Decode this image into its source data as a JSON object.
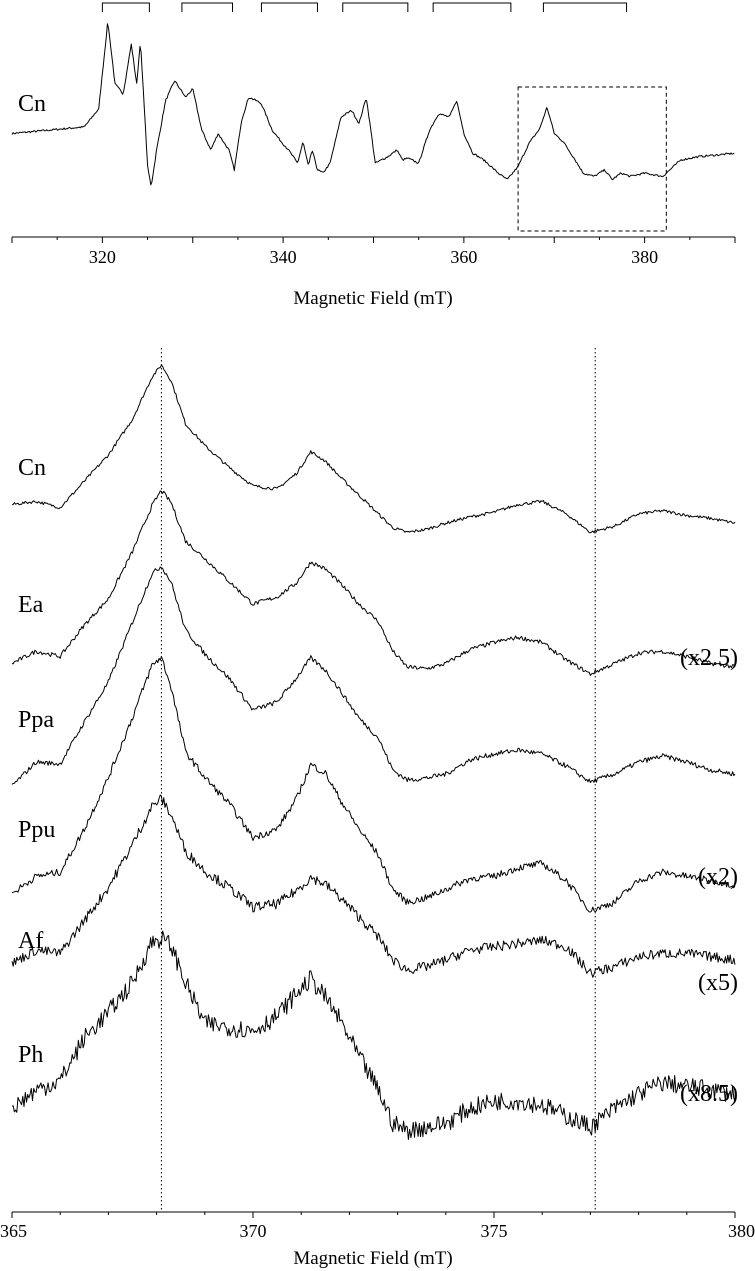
{
  "chart_data": [
    {
      "type": "line",
      "xlabel": "Magnetic Field (mT)",
      "xlim": [
        310,
        390
      ],
      "xticks": [
        320,
        340,
        360,
        380
      ],
      "series": [
        {
          "name": "Cn",
          "x": [
            310,
            318,
            319.6,
            320.6,
            321.4,
            322.3,
            323.2,
            323.8,
            324.2,
            324.6,
            325.0,
            325.4,
            326.0,
            327.0,
            328.0,
            329.2,
            330.0,
            331.0,
            332.0,
            332.8,
            333.4,
            334.0,
            334.6,
            335.4,
            336.2,
            337.0,
            337.6,
            338.8,
            339.8,
            340.6,
            341.6,
            342.2,
            342.8,
            343.2,
            343.8,
            344.4,
            345.2,
            346.4,
            347.6,
            348.4,
            349.2,
            350.2,
            351.6,
            352.6,
            353.2,
            353.8,
            355.0,
            356.2,
            357.2,
            358.4,
            359.2,
            360.0,
            361.0,
            362.2,
            363.0,
            363.8,
            364.8,
            366.0,
            367.2,
            368.4,
            369.2,
            370.0,
            371.0,
            372.2,
            373.2,
            374.4,
            375.6,
            376.4,
            377.4,
            378.4,
            380.0,
            382.0,
            384.0,
            386.0,
            388.0,
            390.0
          ],
          "y": [
            0.1,
            0.14,
            0.25,
            0.78,
            0.4,
            0.34,
            0.64,
            0.4,
            0.66,
            0.3,
            -0.1,
            -0.22,
            0.0,
            0.3,
            0.42,
            0.32,
            0.37,
            0.12,
            0.0,
            0.1,
            0.05,
            0.0,
            -0.12,
            0.18,
            0.32,
            0.3,
            0.28,
            0.12,
            0.05,
            0.0,
            -0.08,
            0.05,
            -0.1,
            0.0,
            -0.12,
            -0.14,
            -0.08,
            0.2,
            0.24,
            0.16,
            0.32,
            -0.08,
            -0.04,
            0.0,
            -0.06,
            -0.05,
            -0.08,
            0.12,
            0.22,
            0.2,
            0.3,
            0.1,
            -0.02,
            -0.06,
            -0.1,
            -0.14,
            -0.18,
            -0.1,
            0.04,
            0.13,
            0.26,
            0.1,
            0.05,
            -0.05,
            -0.14,
            -0.16,
            -0.12,
            -0.18,
            -0.14,
            -0.16,
            -0.14,
            -0.16,
            -0.06,
            -0.04,
            -0.03,
            -0.02
          ]
        }
      ],
      "brackets": [
        [
          320,
          325.2
        ],
        [
          328.8,
          334.4
        ],
        [
          337.6,
          343.8
        ],
        [
          346.6,
          353.8
        ],
        [
          356.6,
          365.2
        ],
        [
          368.8,
          378
        ]
      ],
      "highlight_box": [
        366.0,
        382.4
      ]
    },
    {
      "type": "line",
      "xlabel": "Magnetic Field (mT)",
      "xlim": [
        365,
        380
      ],
      "xticks": [
        365,
        370,
        375,
        380
      ],
      "reference_lines": [
        368.1,
        377.1
      ],
      "x": [
        365.0,
        365.5,
        366.0,
        366.5,
        367.0,
        367.5,
        367.9,
        368.1,
        368.3,
        368.6,
        369.0,
        369.5,
        370.0,
        370.5,
        370.9,
        371.2,
        371.5,
        371.8,
        372.2,
        372.6,
        372.9,
        373.2,
        373.6,
        374.0,
        374.5,
        375.0,
        375.5,
        376.0,
        376.5,
        377.0,
        377.5,
        378.0,
        378.5,
        379.0,
        379.5,
        380.0
      ],
      "series": [
        {
          "name": "Cn",
          "y": [
            0.1,
            0.12,
            0.08,
            0.25,
            0.42,
            0.65,
            0.92,
            1.0,
            0.9,
            0.62,
            0.48,
            0.34,
            0.22,
            0.2,
            0.3,
            0.44,
            0.38,
            0.28,
            0.16,
            0.04,
            -0.05,
            -0.08,
            -0.06,
            -0.02,
            0.02,
            0.05,
            0.1,
            0.12,
            0.04,
            -0.08,
            -0.04,
            0.04,
            0.06,
            0.03,
            0.01,
            -0.02
          ]
        },
        {
          "name": "Ea",
          "scale": "(x2.5)",
          "y": [
            -0.02,
            0.05,
            0.02,
            0.2,
            0.35,
            0.62,
            0.88,
            0.97,
            0.9,
            0.68,
            0.58,
            0.45,
            0.32,
            0.36,
            0.44,
            0.56,
            0.52,
            0.44,
            0.32,
            0.22,
            0.05,
            -0.04,
            -0.05,
            -0.02,
            0.06,
            0.1,
            0.13,
            0.1,
            0.0,
            -0.08,
            -0.02,
            0.04,
            0.05,
            0.02,
            -0.02,
            -0.04
          ]
        },
        {
          "name": "Ppa",
          "y": [
            -0.08,
            0.04,
            0.03,
            0.24,
            0.44,
            0.74,
            0.98,
            1.02,
            0.94,
            0.7,
            0.58,
            0.46,
            0.3,
            0.34,
            0.46,
            0.56,
            0.5,
            0.4,
            0.26,
            0.16,
            0.0,
            -0.05,
            -0.04,
            -0.02,
            0.05,
            0.08,
            0.1,
            0.08,
            0.02,
            -0.06,
            -0.02,
            0.04,
            0.07,
            0.04,
            0.0,
            -0.02
          ]
        },
        {
          "name": "Ppu",
          "scale": "(x2)",
          "y": [
            -0.04,
            0.04,
            0.06,
            0.26,
            0.5,
            0.78,
            1.02,
            1.06,
            0.92,
            0.62,
            0.5,
            0.38,
            0.22,
            0.26,
            0.4,
            0.56,
            0.52,
            0.4,
            0.26,
            0.14,
            -0.02,
            -0.08,
            -0.06,
            -0.02,
            0.03,
            0.04,
            0.08,
            0.1,
            0.02,
            -0.12,
            -0.08,
            0.02,
            0.06,
            0.04,
            0.02,
            0.0
          ]
        },
        {
          "name": "Af",
          "scale": "(x5)",
          "y": [
            -0.02,
            0.06,
            0.04,
            0.24,
            0.44,
            0.7,
            0.93,
            0.98,
            0.88,
            0.66,
            0.54,
            0.44,
            0.32,
            0.34,
            0.42,
            0.5,
            0.46,
            0.38,
            0.26,
            0.14,
            0.0,
            -0.06,
            -0.04,
            0.0,
            0.06,
            0.08,
            0.1,
            0.12,
            0.08,
            -0.08,
            -0.04,
            0.02,
            0.04,
            0.04,
            0.02,
            0.0
          ]
        },
        {
          "name": "Ph",
          "scale": "(x8.5)",
          "y": [
            -0.1,
            0.0,
            0.05,
            0.28,
            0.42,
            0.58,
            0.8,
            0.82,
            0.78,
            0.58,
            0.36,
            0.34,
            0.32,
            0.4,
            0.52,
            0.6,
            0.5,
            0.38,
            0.18,
            0.0,
            -0.18,
            -0.22,
            -0.2,
            -0.18,
            -0.1,
            -0.06,
            -0.06,
            -0.08,
            -0.14,
            -0.2,
            -0.1,
            -0.02,
            0.04,
            0.02,
            0.0,
            -0.02
          ]
        }
      ]
    }
  ]
}
